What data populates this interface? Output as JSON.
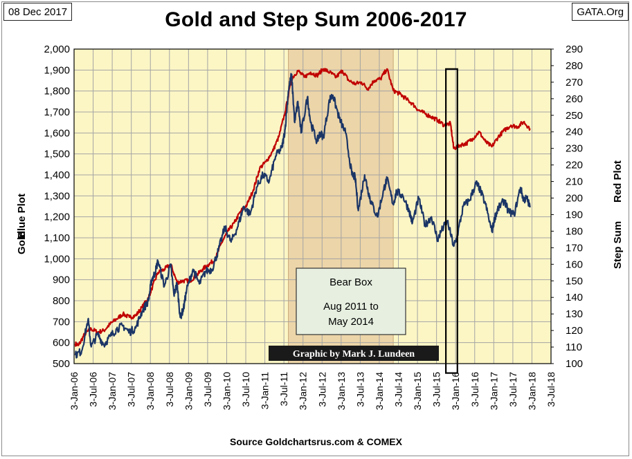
{
  "header": {
    "date": "08 Dec 2017",
    "source_tag": "GATA.Org"
  },
  "footer": {
    "source": "Source Goldchartsrus.com & COMEX"
  },
  "colors": {
    "plot_background": "#fcf6c5",
    "bear_box_fill": "#ecd5a8",
    "grid": "#a4a4a4",
    "gold_series": "#1b3566",
    "step_sum_series": "#c00000",
    "credit_background": "#1a1a1a",
    "credit_text": "#ffffff",
    "note_fill": "#e6efe0"
  },
  "annotations": {
    "bear_box_title": "Bear Box",
    "bear_box_line1": "Aug 2011 to",
    "bear_box_line2": "May 2014",
    "credit": "Graphic by Mark J. Lundeen"
  },
  "chart_data": {
    "type": "line",
    "title": "Gold and Step Sum 2006-2017",
    "x_axis": {
      "ticks": [
        "3-Jan-06",
        "3-Jul-06",
        "3-Jan-07",
        "3-Jul-07",
        "3-Jan-08",
        "3-Jul-08",
        "3-Jan-09",
        "3-Jul-09",
        "3-Jan-10",
        "3-Jul-10",
        "3-Jan-11",
        "3-Jul-11",
        "3-Jan-12",
        "3-Jul-12",
        "3-Jan-13",
        "3-Jul-13",
        "3-Jan-14",
        "3-Jul-14",
        "3-Jan-15",
        "3-Jul-15",
        "3-Jan-16",
        "3-Jul-16",
        "3-Jan-17",
        "3-Jul-17",
        "3-Jan-18",
        "3-Jul-18"
      ],
      "range": [
        "2006-01-03",
        "2018-07-03"
      ]
    },
    "y_left": {
      "label_line1": "Gold",
      "label_line2": "Blue Plot",
      "range": [
        500,
        2000
      ],
      "ticks": [
        "500",
        "600",
        "700",
        "800",
        "900",
        "1,000",
        "1,100",
        "1,200",
        "1,300",
        "1,400",
        "1,500",
        "1,600",
        "1,700",
        "1,800",
        "1,900",
        "2,000"
      ]
    },
    "y_right": {
      "label_line1": "Step Sum",
      "label_line2": "Red Plot",
      "range": [
        100,
        290
      ],
      "ticks": [
        "100",
        "110",
        "120",
        "130",
        "140",
        "150",
        "160",
        "170",
        "180",
        "190",
        "200",
        "210",
        "220",
        "230",
        "240",
        "250",
        "260",
        "270",
        "280",
        "290"
      ]
    },
    "grid": true,
    "shaded_region": {
      "label": "Bear Box",
      "start": "2011-08",
      "end": "2014-05"
    },
    "highlight_box": {
      "start": "2015-10",
      "end": "2016-01",
      "y_top": 1905,
      "y_bottom": 455
    },
    "series": [
      {
        "name": "Gold",
        "axis": "left",
        "points": [
          [
            "2006-01",
            540
          ],
          [
            "2006-03",
            560
          ],
          [
            "2006-05",
            710
          ],
          [
            "2006-06",
            580
          ],
          [
            "2006-08",
            640
          ],
          [
            "2006-10",
            590
          ],
          [
            "2006-12",
            630
          ],
          [
            "2007-02",
            665
          ],
          [
            "2007-04",
            680
          ],
          [
            "2007-06",
            650
          ],
          [
            "2007-08",
            670
          ],
          [
            "2007-10",
            750
          ],
          [
            "2007-12",
            800
          ],
          [
            "2008-01",
            900
          ],
          [
            "2008-02",
            930
          ],
          [
            "2008-03",
            990
          ],
          [
            "2008-05",
            870
          ],
          [
            "2008-07",
            970
          ],
          [
            "2008-08",
            830
          ],
          [
            "2008-09",
            880
          ],
          [
            "2008-10",
            720
          ],
          [
            "2008-11",
            760
          ],
          [
            "2008-12",
            850
          ],
          [
            "2009-02",
            950
          ],
          [
            "2009-04",
            880
          ],
          [
            "2009-06",
            940
          ],
          [
            "2009-08",
            950
          ],
          [
            "2009-10",
            1040
          ],
          [
            "2009-12",
            1150
          ],
          [
            "2010-02",
            1080
          ],
          [
            "2010-04",
            1150
          ],
          [
            "2010-06",
            1250
          ],
          [
            "2010-08",
            1210
          ],
          [
            "2010-10",
            1340
          ],
          [
            "2010-12",
            1400
          ],
          [
            "2011-02",
            1370
          ],
          [
            "2011-04",
            1490
          ],
          [
            "2011-06",
            1530
          ],
          [
            "2011-07",
            1620
          ],
          [
            "2011-08",
            1800
          ],
          [
            "2011-09",
            1880
          ],
          [
            "2011-10",
            1650
          ],
          [
            "2011-11",
            1750
          ],
          [
            "2011-12",
            1600
          ],
          [
            "2012-02",
            1770
          ],
          [
            "2012-03",
            1650
          ],
          [
            "2012-05",
            1560
          ],
          [
            "2012-06",
            1600
          ],
          [
            "2012-07",
            1580
          ],
          [
            "2012-09",
            1760
          ],
          [
            "2012-10",
            1780
          ],
          [
            "2012-12",
            1670
          ],
          [
            "2013-02",
            1600
          ],
          [
            "2013-04",
            1400
          ],
          [
            "2013-05",
            1390
          ],
          [
            "2013-06",
            1230
          ],
          [
            "2013-08",
            1400
          ],
          [
            "2013-09",
            1330
          ],
          [
            "2013-10",
            1270
          ],
          [
            "2013-12",
            1200
          ],
          [
            "2014-02",
            1330
          ],
          [
            "2014-03",
            1380
          ],
          [
            "2014-05",
            1260
          ],
          [
            "2014-06",
            1320
          ],
          [
            "2014-08",
            1300
          ],
          [
            "2014-10",
            1230
          ],
          [
            "2014-11",
            1170
          ],
          [
            "2015-01",
            1290
          ],
          [
            "2015-03",
            1160
          ],
          [
            "2015-05",
            1200
          ],
          [
            "2015-07",
            1090
          ],
          [
            "2015-08",
            1130
          ],
          [
            "2015-10",
            1180
          ],
          [
            "2015-12",
            1060
          ],
          [
            "2016-01",
            1100
          ],
          [
            "2016-03",
            1250
          ],
          [
            "2016-05",
            1280
          ],
          [
            "2016-07",
            1360
          ],
          [
            "2016-08",
            1340
          ],
          [
            "2016-10",
            1260
          ],
          [
            "2016-12",
            1130
          ],
          [
            "2017-01",
            1200
          ],
          [
            "2017-02",
            1240
          ],
          [
            "2017-04",
            1280
          ],
          [
            "2017-05",
            1230
          ],
          [
            "2017-07",
            1210
          ],
          [
            "2017-09",
            1340
          ],
          [
            "2017-10",
            1280
          ],
          [
            "2017-11",
            1290
          ],
          [
            "2017-12",
            1245
          ]
        ]
      },
      {
        "name": "Step Sum",
        "axis": "right",
        "points": [
          [
            "2006-01",
            112
          ],
          [
            "2006-02",
            111
          ],
          [
            "2006-04",
            118
          ],
          [
            "2006-06",
            121
          ],
          [
            "2006-08",
            119
          ],
          [
            "2006-10",
            120
          ],
          [
            "2006-12",
            124
          ],
          [
            "2007-02",
            127
          ],
          [
            "2007-04",
            130
          ],
          [
            "2007-06",
            128
          ],
          [
            "2007-08",
            129
          ],
          [
            "2007-10",
            134
          ],
          [
            "2007-12",
            140
          ],
          [
            "2008-01",
            145
          ],
          [
            "2008-03",
            155
          ],
          [
            "2008-05",
            157
          ],
          [
            "2008-07",
            160
          ],
          [
            "2008-09",
            149
          ],
          [
            "2008-11",
            150
          ],
          [
            "2009-01",
            150
          ],
          [
            "2009-03",
            153
          ],
          [
            "2009-05",
            157
          ],
          [
            "2009-07",
            160
          ],
          [
            "2009-09",
            163
          ],
          [
            "2009-11",
            173
          ],
          [
            "2010-01",
            180
          ],
          [
            "2010-03",
            185
          ],
          [
            "2010-05",
            192
          ],
          [
            "2010-07",
            196
          ],
          [
            "2010-09",
            205
          ],
          [
            "2010-11",
            218
          ],
          [
            "2011-01",
            222
          ],
          [
            "2011-03",
            228
          ],
          [
            "2011-05",
            237
          ],
          [
            "2011-07",
            252
          ],
          [
            "2011-09",
            272
          ],
          [
            "2011-11",
            277
          ],
          [
            "2012-01",
            273
          ],
          [
            "2012-03",
            276
          ],
          [
            "2012-05",
            274
          ],
          [
            "2012-07",
            278
          ],
          [
            "2012-09",
            276
          ],
          [
            "2012-11",
            273
          ],
          [
            "2013-01",
            277
          ],
          [
            "2013-03",
            271
          ],
          [
            "2013-05",
            269
          ],
          [
            "2013-07",
            270
          ],
          [
            "2013-09",
            266
          ],
          [
            "2013-11",
            271
          ],
          [
            "2014-01",
            272
          ],
          [
            "2014-03",
            278
          ],
          [
            "2014-05",
            265
          ],
          [
            "2014-07",
            263
          ],
          [
            "2014-09",
            260
          ],
          [
            "2014-11",
            257
          ],
          [
            "2015-01",
            253
          ],
          [
            "2015-03",
            251
          ],
          [
            "2015-05",
            249
          ],
          [
            "2015-07",
            247
          ],
          [
            "2015-09",
            244
          ],
          [
            "2015-11",
            245
          ],
          [
            "2015-12",
            230
          ],
          [
            "2016-02",
            232
          ],
          [
            "2016-04",
            233
          ],
          [
            "2016-06",
            236
          ],
          [
            "2016-08",
            240
          ],
          [
            "2016-10",
            234
          ],
          [
            "2016-12",
            231
          ],
          [
            "2017-02",
            237
          ],
          [
            "2017-04",
            241
          ],
          [
            "2017-06",
            244
          ],
          [
            "2017-08",
            243
          ],
          [
            "2017-10",
            246
          ],
          [
            "2017-12",
            242
          ]
        ]
      }
    ]
  }
}
